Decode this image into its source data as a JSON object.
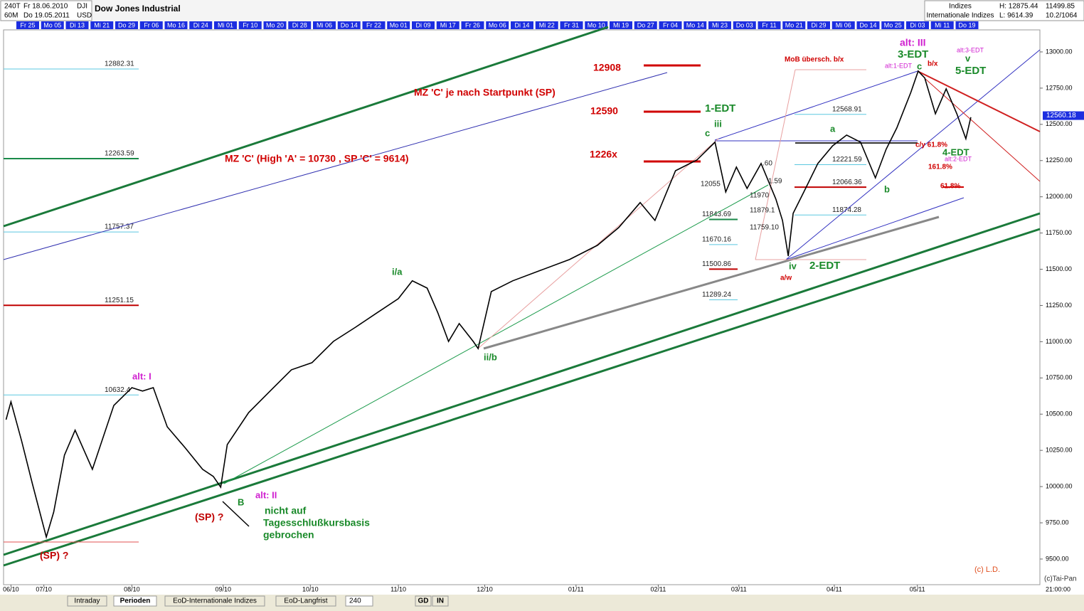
{
  "header": {
    "period": "240T",
    "from": "Fr 18.06.2010",
    "symbol": "DJI",
    "interval": "60M",
    "to": "Do 19.05.2011",
    "currency": "USD",
    "title": "Dow Jones Industrial",
    "group": "Indizes",
    "list": "Internationale Indizes",
    "high": "H: 12875.44",
    "low": "L: 9614.39",
    "last": "11499.85",
    "ratio": "10.2/1064"
  },
  "date_strip": [
    "Fr 25",
    "Mo 05",
    "Di 13",
    "Mi 21",
    "Do 29",
    "Fr 06",
    "Mo 16",
    "Di 24",
    "Mi 01",
    "Fr 10",
    "Mo 20",
    "Di 28",
    "Mi 06",
    "Do 14",
    "Fr 22",
    "Mo 01",
    "Di 09",
    "Mi 17",
    "Fr 26",
    "Mo 06",
    "Di 14",
    "Mi 22",
    "Fr 31",
    "Mo 10",
    "Mi 19",
    "Do 27",
    "Fr 04",
    "Mo 14",
    "Mi 23",
    "Do 03",
    "Fr 11",
    "Mo 21",
    "Di 29",
    "Mi 06",
    "Do 14",
    "Mo 25",
    "Di 03",
    "Mi 11",
    "Do 19"
  ],
  "chart_data": {
    "type": "line",
    "color": "#000000",
    "x": [
      5.93,
      5.99,
      6.12,
      6.25,
      6.42,
      6.51,
      6.64,
      6.77,
      6.98,
      7.24,
      7.46,
      7.59,
      7.72,
      7.89,
      8.11,
      8.32,
      8.45,
      8.54,
      8.62,
      8.88,
      9.14,
      9.4,
      9.65,
      9.91,
      10.18,
      10.44,
      10.7,
      10.87,
      11.05,
      11.18,
      11.31,
      11.44,
      11.61,
      11.67,
      11.83,
      12.09,
      12.43,
      12.78,
      13.12,
      13.38,
      13.64,
      13.82,
      14.07,
      14.33,
      14.55,
      14.68,
      14.81,
      14.94,
      15.11,
      15.29,
      15.37,
      15.44,
      15.5,
      15.63,
      15.8,
      15.98,
      16.15,
      16.32,
      16.5,
      16.63,
      16.76,
      16.93,
      17.02,
      17.1,
      17.23,
      17.36,
      17.49,
      17.6,
      17.66
    ],
    "values": [
      10462,
      10585,
      10315,
      10020,
      9652,
      9824,
      10217,
      10389,
      10119,
      10560,
      10683,
      10659,
      10683,
      10413,
      10266,
      10119,
      10070,
      9996,
      10290,
      10511,
      10659,
      10806,
      10855,
      11002,
      11100,
      11199,
      11297,
      11420,
      11370,
      11199,
      11002,
      11125,
      11002,
      10953,
      11346,
      11420,
      11493,
      11567,
      11665,
      11788,
      11960,
      11837,
      12180,
      12254,
      12377,
      12033,
      12205,
      12058,
      12230,
      11984,
      11837,
      11591,
      11886,
      12033,
      12230,
      12352,
      12426,
      12377,
      12131,
      12328,
      12475,
      12720,
      12868,
      12820,
      12573,
      12745,
      12573,
      12401,
      12549
    ],
    "xlim": [
      5.9,
      18.5
    ],
    "xticks": [
      {
        "value": 5.99,
        "label": "06/10"
      },
      {
        "value": 6.39,
        "label": "07/10"
      },
      {
        "value": 7.46,
        "label": "08/10"
      },
      {
        "value": 8.57,
        "label": "09/10"
      },
      {
        "value": 9.63,
        "label": "10/10"
      },
      {
        "value": 10.7,
        "label": "11/10"
      },
      {
        "value": 11.75,
        "label": "12/10"
      },
      {
        "value": 12.86,
        "label": "01/11"
      },
      {
        "value": 13.86,
        "label": "02/11"
      },
      {
        "value": 14.84,
        "label": "03/11"
      },
      {
        "value": 16.0,
        "label": "04/11"
      },
      {
        "value": 17.01,
        "label": "05/11"
      }
    ],
    "ylim": [
      9323,
      13152
    ],
    "yticks": [
      {
        "value": 9500,
        "label": "9500.00"
      },
      {
        "value": 9750,
        "label": "9750.00"
      },
      {
        "value": 10000,
        "label": "10000.00"
      },
      {
        "value": 10250,
        "label": "10250.00"
      },
      {
        "value": 10500,
        "label": "10500.00"
      },
      {
        "value": 10750,
        "label": "10750.00"
      },
      {
        "value": 11000,
        "label": "11000.00"
      },
      {
        "value": 11250,
        "label": "11250.00"
      },
      {
        "value": 11500,
        "label": "11500.00"
      },
      {
        "value": 11750,
        "label": "11750.00"
      },
      {
        "value": 12000,
        "label": "12000.00"
      },
      {
        "value": 12250,
        "label": "12250.00"
      },
      {
        "value": 12500,
        "label": "12500.00"
      },
      {
        "value": 12750,
        "label": "12750.00"
      },
      {
        "value": 13000,
        "label": "13000.00"
      }
    ],
    "last_price": 12560.18,
    "time_label": "21:00:00",
    "levels": [
      {
        "value": 12882.31,
        "color": "#5bc8e0"
      },
      {
        "value": 12263.59,
        "color": "#1a8a4a"
      },
      {
        "value": 11757.37,
        "color": "#5bc8e0"
      },
      {
        "value": 11251.15,
        "color": "#c00000"
      },
      {
        "value": 10632.4,
        "color": "#5bc8e0"
      },
      {
        "value": 12568.91,
        "color": "#5bc8e0"
      },
      {
        "value": 12221.59,
        "color": "#5bc8e0"
      },
      {
        "value": 12066.36,
        "color": "#c00000"
      },
      {
        "value": 11874.28,
        "color": "#5bc8e0"
      },
      {
        "value": 11843.69,
        "color": "#1a8a4a"
      },
      {
        "value": 11670.16,
        "color": "#5bc8e0"
      },
      {
        "value": 11500.86,
        "color": "#c00000"
      },
      {
        "value": 11289.24,
        "color": "#5bc8e0"
      }
    ],
    "annotations": [
      {
        "text": "12908",
        "color": "#d00000"
      },
      {
        "text": "12590",
        "color": "#d00000"
      },
      {
        "text": "1226x",
        "color": "#d00000"
      },
      {
        "text": "MZ 'C' je nach Startpunkt (SP)",
        "color": "#d00000"
      },
      {
        "text": "MZ 'C' (High 'A' = 10730 , SP 'C' = 9614)",
        "color": "#d00000"
      },
      {
        "text": "MoB übersch. b/x",
        "color": "#d00000"
      },
      {
        "text": "1-EDT",
        "color": "#1a8a2a"
      },
      {
        "text": "iii",
        "color": "#1a8a2a"
      },
      {
        "text": "c",
        "color": "#1a8a2a"
      },
      {
        "text": "i/a",
        "color": "#1a8a2a"
      },
      {
        "text": "ii/b",
        "color": "#1a8a2a"
      },
      {
        "text": "B",
        "color": "#1a8a2a"
      },
      {
        "text": "nicht auf",
        "color": "#1a8a2a"
      },
      {
        "text": "Tagesschlußkursbasis",
        "color": "#1a8a2a"
      },
      {
        "text": "gebrochen",
        "color": "#1a8a2a"
      },
      {
        "text": "iv",
        "color": "#1a8a2a"
      },
      {
        "text": "2-EDT",
        "color": "#1a8a2a"
      },
      {
        "text": "a",
        "color": "#1a8a2a"
      },
      {
        "text": "b",
        "color": "#1a8a2a"
      },
      {
        "text": "3-EDT",
        "color": "#1a8a2a"
      },
      {
        "text": "c",
        "color": "#1a8a2a"
      },
      {
        "text": "v",
        "color": "#1a8a2a"
      },
      {
        "text": "5-EDT",
        "color": "#1a8a2a"
      },
      {
        "text": "4-EDT",
        "color": "#1a8a2a"
      },
      {
        "text": "alt: I",
        "color": "#d020d0"
      },
      {
        "text": "alt: II",
        "color": "#d020d0"
      },
      {
        "text": "alt: III",
        "color": "#d020d0"
      },
      {
        "text": "alt:1-EDT",
        "color": "#d020d0"
      },
      {
        "text": "alt:3-EDT",
        "color": "#d020d0"
      },
      {
        "text": "alt:2-EDT",
        "color": "#d020d0"
      },
      {
        "text": "b/x",
        "color": "#d00000"
      },
      {
        "text": "a/w",
        "color": "#d00000"
      },
      {
        "text": "c/y  61.8%",
        "color": "#d00000"
      },
      {
        "text": "161.8%",
        "color": "#d00000"
      },
      {
        "text": "61.8%",
        "color": "#d00000"
      },
      {
        "text": "(SP) ?",
        "color": "#c00000"
      },
      {
        "text": "(SP) ?",
        "color": "#c00000"
      },
      {
        "text": "(c) L.D.",
        "color": "#e05020"
      },
      {
        "text": "(c)Tai-Pan",
        "color": "#333333"
      },
      {
        "text": "12055",
        "color": "#222222"
      },
      {
        "text": "11970",
        "color": "#222222"
      },
      {
        "text": "11879.1",
        "color": "#222222"
      },
      {
        "text": "11759.10",
        "color": "#222222"
      },
      {
        "text": ".60",
        "color": "#222222"
      },
      {
        "text": "1.59",
        "color": "#222222"
      }
    ]
  },
  "footer": {
    "tabs": [
      "Intraday",
      "Perioden",
      "EoD-Internationale Indizes",
      "EoD-Langfrist"
    ],
    "period": "240",
    "buttons": [
      "GD",
      "IN"
    ]
  }
}
